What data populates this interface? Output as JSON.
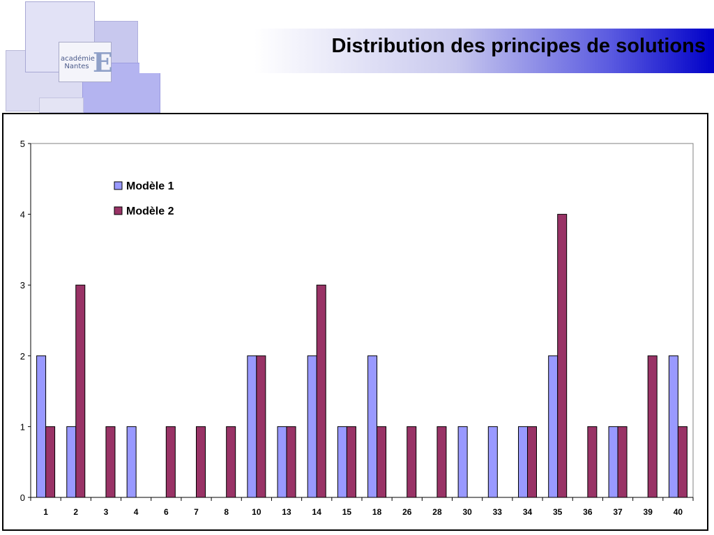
{
  "header": {
    "title": "Distribution des principes de solutions",
    "logo_line1": "académie",
    "logo_line2": "Nantes"
  },
  "colors": {
    "series1": "#9999ff",
    "series2": "#993366",
    "axis": "#000000"
  },
  "chart_data": {
    "type": "bar",
    "title": "",
    "xlabel": "",
    "ylabel": "",
    "ylim": [
      0,
      5
    ],
    "yticks": [
      0,
      1,
      2,
      3,
      4,
      5
    ],
    "grid": false,
    "legend": "top-left",
    "categories": [
      "1",
      "2",
      "3",
      "4",
      "6",
      "7",
      "8",
      "10",
      "13",
      "14",
      "15",
      "18",
      "26",
      "28",
      "30",
      "33",
      "34",
      "35",
      "36",
      "37",
      "39",
      "40"
    ],
    "series": [
      {
        "name": "Modèle 1",
        "values": [
          2,
          1,
          0,
          1,
          0,
          0,
          0,
          2,
          1,
          2,
          1,
          2,
          0,
          0,
          1,
          1,
          1,
          2,
          0,
          1,
          0,
          2
        ]
      },
      {
        "name": "Modèle 2",
        "values": [
          1,
          3,
          1,
          0,
          1,
          1,
          1,
          2,
          1,
          3,
          1,
          1,
          1,
          1,
          0,
          0,
          1,
          4,
          1,
          1,
          2,
          1
        ]
      }
    ]
  }
}
